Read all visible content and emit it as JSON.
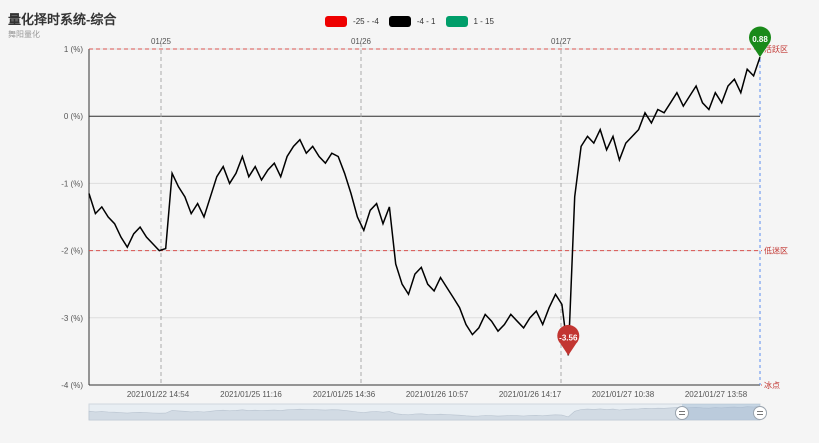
{
  "header": {
    "title": "量化择时系统-综合",
    "subtitle": "舞阳量化"
  },
  "legend": [
    {
      "label": "-25 - -4",
      "color": "#ee0000"
    },
    {
      "label": "-4 - 1",
      "color": "#000000"
    },
    {
      "label": "1 - 15",
      "color": "#009e6a"
    }
  ],
  "chart_data": {
    "type": "line",
    "title": "量化择时系统-综合",
    "subtitle": "舞阳量化",
    "y_ticks": [
      "1 (%)",
      "0 (%)",
      "-1 (%)",
      "-2 (%)",
      "-3 (%)",
      "-4 (%)"
    ],
    "ylim": [
      -4,
      1
    ],
    "x_ticks_bottom": [
      "2021/01/22 14:54",
      "2021/01/25 11:16",
      "2021/01/25 14:36",
      "2021/01/26 10:57",
      "2021/01/26 14:17",
      "2021/01/27 10:38",
      "2021/01/27 13:58"
    ],
    "x_ticks_top": [
      "01/25",
      "01/26",
      "01/27"
    ],
    "zones": [
      {
        "label": "活跃区",
        "value": 1
      },
      {
        "label": "低迷区",
        "value": -2
      },
      {
        "label": "冰点",
        "value": -4
      }
    ],
    "markers": [
      {
        "label": "-3.56",
        "value": -3.56,
        "color": "#c23531"
      },
      {
        "label": "0.88",
        "value": 0.88,
        "color": "#1a8a1a"
      }
    ],
    "series": [
      {
        "color": "#000000",
        "values": [
          -1.15,
          -1.45,
          -1.35,
          -1.5,
          -1.6,
          -1.8,
          -1.95,
          -1.75,
          -1.65,
          -1.8,
          -1.9,
          -2.0,
          -1.97,
          -0.85,
          -1.05,
          -1.2,
          -1.45,
          -1.3,
          -1.5,
          -1.2,
          -0.9,
          -0.75,
          -1.0,
          -0.85,
          -0.6,
          -0.9,
          -0.75,
          -0.95,
          -0.8,
          -0.7,
          -0.9,
          -0.6,
          -0.45,
          -0.35,
          -0.55,
          -0.45,
          -0.6,
          -0.7,
          -0.55,
          -0.6,
          -0.85,
          -1.15,
          -1.5,
          -1.7,
          -1.4,
          -1.3,
          -1.6,
          -1.35,
          -2.2,
          -2.5,
          -2.65,
          -2.35,
          -2.25,
          -2.5,
          -2.6,
          -2.4,
          -2.55,
          -2.7,
          -2.85,
          -3.1,
          -3.25,
          -3.15,
          -2.95,
          -3.05,
          -3.2,
          -3.1,
          -2.95,
          -3.05,
          -3.15,
          -3.0,
          -2.9,
          -3.1,
          -2.85,
          -2.65,
          -2.8,
          -3.56,
          -1.2,
          -0.45,
          -0.3,
          -0.4,
          -0.2,
          -0.5,
          -0.3,
          -0.65,
          -0.4,
          -0.3,
          -0.2,
          0.05,
          -0.1,
          0.1,
          0.05,
          0.2,
          0.35,
          0.15,
          0.3,
          0.45,
          0.2,
          0.1,
          0.35,
          0.2,
          0.45,
          0.55,
          0.35,
          0.7,
          0.6,
          0.88
        ]
      }
    ]
  }
}
